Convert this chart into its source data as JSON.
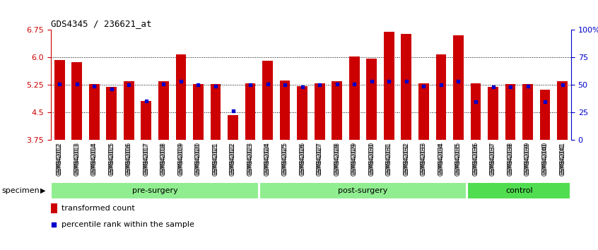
{
  "title": "GDS4345 / 236621_at",
  "samples": [
    "GSM842012",
    "GSM842013",
    "GSM842014",
    "GSM842015",
    "GSM842016",
    "GSM842017",
    "GSM842018",
    "GSM842019",
    "GSM842020",
    "GSM842021",
    "GSM842022",
    "GSM842023",
    "GSM842024",
    "GSM842025",
    "GSM842026",
    "GSM842027",
    "GSM842028",
    "GSM842029",
    "GSM842030",
    "GSM842031",
    "GSM842032",
    "GSM842033",
    "GSM842034",
    "GSM842035",
    "GSM842036",
    "GSM842037",
    "GSM842038",
    "GSM842039",
    "GSM842040",
    "GSM842041"
  ],
  "red_values": [
    5.93,
    5.88,
    5.28,
    5.2,
    5.35,
    4.82,
    5.35,
    6.08,
    5.28,
    5.28,
    4.42,
    5.3,
    5.92,
    5.38,
    5.22,
    5.3,
    5.36,
    6.02,
    5.97,
    6.7,
    6.65,
    5.3,
    6.08,
    6.6,
    5.3,
    5.2,
    5.28,
    5.28,
    5.12,
    5.35
  ],
  "blue_values": [
    5.28,
    5.28,
    5.22,
    5.15,
    5.25,
    4.82,
    5.28,
    5.35,
    5.25,
    5.22,
    4.55,
    5.25,
    5.27,
    5.25,
    5.2,
    5.25,
    5.28,
    5.28,
    5.35,
    5.35,
    5.35,
    5.22,
    5.25,
    5.35,
    4.8,
    5.2,
    5.2,
    5.22,
    4.8,
    5.25
  ],
  "groups": [
    {
      "label": "pre-surgery",
      "start": 0,
      "end": 11,
      "color": "#90EE90"
    },
    {
      "label": "post-surgery",
      "start": 12,
      "end": 23,
      "color": "#90EE90"
    },
    {
      "label": "control",
      "start": 24,
      "end": 29,
      "color": "#50DD50"
    }
  ],
  "ymin": 3.75,
  "ymax": 6.75,
  "yticks_left": [
    3.75,
    4.5,
    5.25,
    6.0,
    6.75
  ],
  "bar_color": "#CC0000",
  "dot_color": "#0000CC",
  "bg_color": "#ffffff",
  "ylabel_left_color": "#CC0000",
  "ylabel_right_color": "#0000CC",
  "right_tick_positions": [
    3.75,
    4.5,
    5.25,
    6.0,
    6.75
  ],
  "right_tick_labels": [
    "0",
    "25",
    "50",
    "75",
    "100%"
  ]
}
